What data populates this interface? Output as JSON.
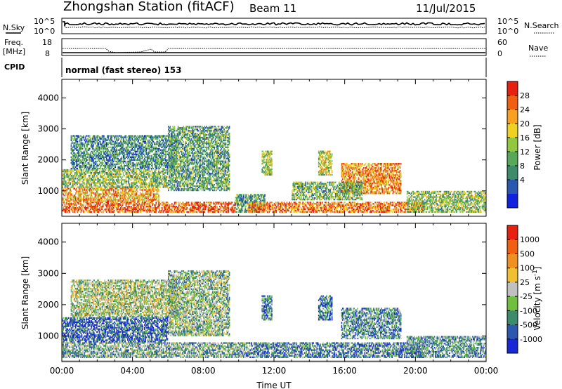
{
  "header": {
    "station": "Zhongshan Station (fitACF)",
    "beam": "Beam 11",
    "date": "11/Jul/2015"
  },
  "nsky_panel": {
    "left_label": "N.Sky",
    "left_ticks": [
      "10^5",
      "10^0"
    ],
    "right_label": "N.Search",
    "right_ticks": [
      "10^5",
      "10^0"
    ]
  },
  "freq_panel": {
    "left_label_line1": "Freq.",
    "left_label_line2": "[MHz]",
    "left_ticks": [
      "18",
      "8"
    ],
    "right_label": "Nave",
    "right_ticks": [
      "60",
      "0"
    ]
  },
  "cpid_panel": {
    "label": "CPID",
    "mode_text": "normal (fast stereo) 153"
  },
  "chart_data": [
    {
      "type": "heatmap",
      "title": "",
      "xlabel": "",
      "ylabel": "Slant Range [km]",
      "xlim": [
        0,
        24
      ],
      "ylim": [
        180,
        4600
      ],
      "x_ticks": [
        "00:00",
        "04:00",
        "08:00",
        "12:00",
        "16:00",
        "20:00",
        "00:00"
      ],
      "y_ticks": [
        "1000",
        "2000",
        "3000",
        "4000"
      ],
      "y_tick_values": [
        1000,
        2000,
        3000,
        4000
      ],
      "colorbar": {
        "label": "Power [dB]",
        "ticks": [
          "28",
          "24",
          "20",
          "16",
          "12",
          "8",
          "4"
        ],
        "range": [
          0,
          32
        ],
        "colors": [
          "#1020e0",
          "#2858b0",
          "#3c8c6c",
          "#58a858",
          "#90c840",
          "#f0d020",
          "#f8a020",
          "#f06010",
          "#e82010"
        ]
      },
      "echo_regions": [
        {
          "t": [
            0.0,
            9.8
          ],
          "r": [
            300,
            650
          ],
          "level": 0.85
        },
        {
          "t": [
            0.0,
            5.5
          ],
          "r": [
            650,
            1100
          ],
          "level": 0.7
        },
        {
          "t": [
            0.0,
            6.0
          ],
          "r": [
            1100,
            1700
          ],
          "level": 0.45
        },
        {
          "t": [
            0.5,
            6.5
          ],
          "r": [
            1700,
            2800
          ],
          "level": 0.3
        },
        {
          "t": [
            6.0,
            9.5
          ],
          "r": [
            1000,
            3100
          ],
          "level": 0.35
        },
        {
          "t": [
            9.8,
            11.5
          ],
          "r": [
            300,
            900
          ],
          "level": 0.35
        },
        {
          "t": [
            10.5,
            20.5
          ],
          "r": [
            300,
            650
          ],
          "level": 0.8
        },
        {
          "t": [
            11.3,
            11.9
          ],
          "r": [
            1500,
            2300
          ],
          "level": 0.5
        },
        {
          "t": [
            14.5,
            15.3
          ],
          "r": [
            1500,
            2300
          ],
          "level": 0.55
        },
        {
          "t": [
            15.8,
            19.2
          ],
          "r": [
            900,
            1900
          ],
          "level": 0.75
        },
        {
          "t": [
            13.0,
            17.0
          ],
          "r": [
            700,
            1300
          ],
          "level": 0.4
        },
        {
          "t": [
            19.5,
            24.0
          ],
          "r": [
            300,
            1000
          ],
          "level": 0.45
        }
      ]
    },
    {
      "type": "heatmap",
      "title": "",
      "xlabel": "Time UT",
      "ylabel": "Slant Range [km]",
      "xlim": [
        0,
        24
      ],
      "ylim": [
        180,
        4600
      ],
      "x_ticks": [
        "00:00",
        "04:00",
        "08:00",
        "12:00",
        "16:00",
        "20:00",
        "00:00"
      ],
      "y_ticks": [
        "1000",
        "2000",
        "3000",
        "4000"
      ],
      "y_tick_values": [
        1000,
        2000,
        3000,
        4000
      ],
      "colorbar": {
        "label": "Velocity [m s^-1]",
        "ticks": [
          "1000",
          "500",
          "100",
          "25",
          "-25",
          "-100",
          "-500",
          "-1000"
        ],
        "colors": [
          "#1828d8",
          "#2c58b0",
          "#3c8c6c",
          "#70c040",
          "#c0c0c0",
          "#f0c030",
          "#f09020",
          "#f06010",
          "#e82010"
        ]
      },
      "echo_regions": [
        {
          "t": [
            0.0,
            10.5
          ],
          "r": [
            300,
            800
          ],
          "level": 0.35
        },
        {
          "t": [
            0.0,
            6.0
          ],
          "r": [
            800,
            1600
          ],
          "level": 0.15
        },
        {
          "t": [
            0.5,
            6.5
          ],
          "r": [
            1600,
            2800
          ],
          "level": 0.45
        },
        {
          "t": [
            6.0,
            9.5
          ],
          "r": [
            1000,
            3100
          ],
          "level": 0.4
        },
        {
          "t": [
            10.5,
            20.5
          ],
          "r": [
            300,
            800
          ],
          "level": 0.25
        },
        {
          "t": [
            11.3,
            11.9
          ],
          "r": [
            1500,
            2300
          ],
          "level": 0.25
        },
        {
          "t": [
            14.5,
            15.3
          ],
          "r": [
            1500,
            2300
          ],
          "level": 0.2
        },
        {
          "t": [
            15.8,
            19.2
          ],
          "r": [
            900,
            1900
          ],
          "level": 0.3
        },
        {
          "t": [
            19.5,
            24.0
          ],
          "r": [
            300,
            1000
          ],
          "level": 0.3
        }
      ]
    }
  ],
  "colors": {
    "axis": "#000000",
    "background": "#ffffff"
  }
}
